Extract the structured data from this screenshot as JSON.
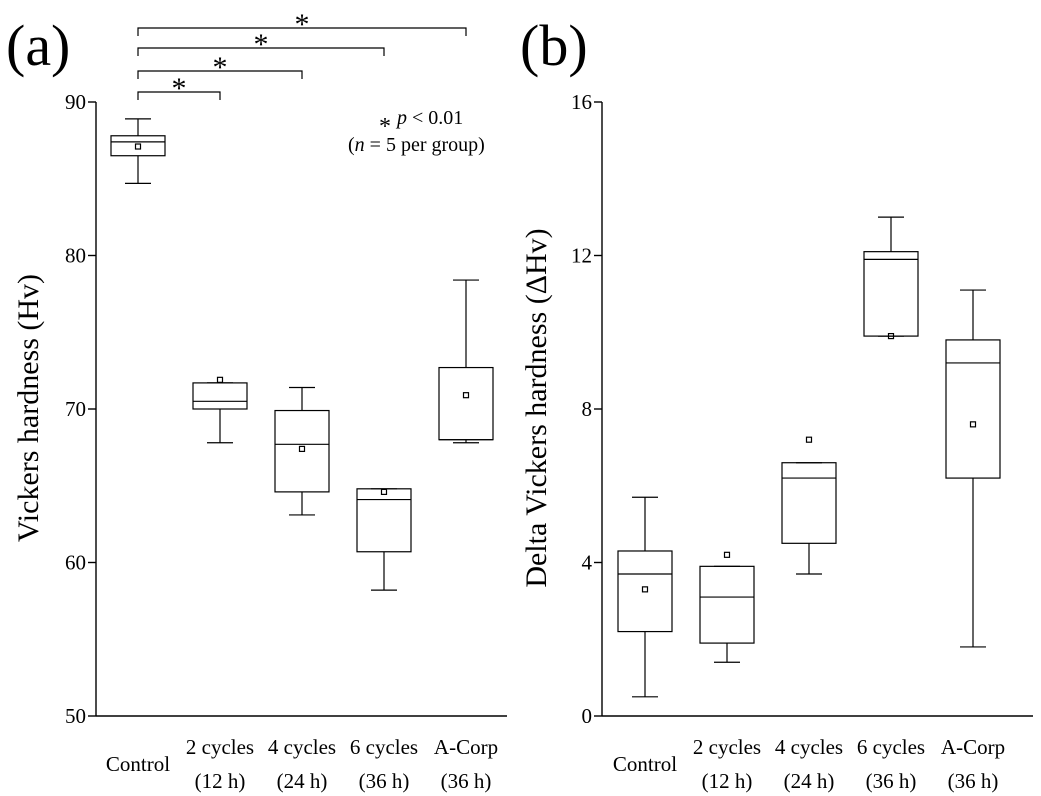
{
  "chart_data": [
    {
      "type": "box",
      "panel_label": "(a)",
      "ylabel": "Vickers hardness (Hv)",
      "ylim": [
        50,
        90
      ],
      "yticks": [
        50,
        60,
        70,
        80,
        90
      ],
      "categories": [
        {
          "line1": "Control",
          "line2": ""
        },
        {
          "line1": "2 cycles",
          "line2": "(12 h)"
        },
        {
          "line1": "4 cycles",
          "line2": "(24 h)"
        },
        {
          "line1": "6 cycles",
          "line2": "(36 h)"
        },
        {
          "line1": "A-Corp",
          "line2": "(36 h)"
        }
      ],
      "boxes": [
        {
          "min": 84.7,
          "q1": 86.5,
          "median": 87.4,
          "q3": 87.8,
          "max": 88.9,
          "mean": 87.1
        },
        {
          "min": 67.8,
          "q1": 70.0,
          "median": 70.5,
          "q3": 71.7,
          "max": 71.7,
          "mean": 71.9
        },
        {
          "min": 63.1,
          "q1": 64.6,
          "median": 67.7,
          "q3": 69.9,
          "max": 71.4,
          "mean": 67.4
        },
        {
          "min": 58.2,
          "q1": 60.7,
          "median": 64.1,
          "q3": 64.8,
          "max": 64.8,
          "mean": 64.6
        },
        {
          "min": 67.8,
          "q1": 68.0,
          "median": 68.0,
          "q3": 72.7,
          "max": 78.4,
          "mean": 70.9
        }
      ],
      "significance": [
        {
          "from": 0,
          "to": 1,
          "symbol": "*"
        },
        {
          "from": 0,
          "to": 2,
          "symbol": "*"
        },
        {
          "from": 0,
          "to": 3,
          "symbol": "*"
        },
        {
          "from": 0,
          "to": 4,
          "symbol": "*"
        }
      ],
      "annotation": {
        "star": "*",
        "p_italic": "p",
        "p_text": " < 0.01",
        "open": "(",
        "n_italic": "n",
        "n_text": " = 5 per group)"
      }
    },
    {
      "type": "box",
      "panel_label": "(b)",
      "ylabel": "Delta Vickers hardness (ΔHv)",
      "ylim": [
        0,
        16
      ],
      "yticks": [
        0,
        4,
        8,
        12,
        16
      ],
      "categories": [
        {
          "line1": "Control",
          "line2": ""
        },
        {
          "line1": "2 cycles",
          "line2": "(12 h)"
        },
        {
          "line1": "4 cycles",
          "line2": "(24 h)"
        },
        {
          "line1": "6 cycles",
          "line2": "(36 h)"
        },
        {
          "line1": "A-Corp",
          "line2": "(36 h)"
        }
      ],
      "boxes": [
        {
          "min": 0.5,
          "q1": 2.2,
          "median": 3.7,
          "q3": 4.3,
          "max": 5.7,
          "mean": 3.3
        },
        {
          "min": 1.4,
          "q1": 1.9,
          "median": 3.1,
          "q3": 3.9,
          "max": 3.9,
          "mean": 4.2
        },
        {
          "min": 3.7,
          "q1": 4.5,
          "median": 6.2,
          "q3": 6.6,
          "max": 6.6,
          "mean": 7.2
        },
        {
          "min": 9.9,
          "q1": 9.9,
          "median": 11.9,
          "q3": 12.1,
          "max": 13.0,
          "mean": 9.9
        },
        {
          "min": 1.8,
          "q1": 6.2,
          "median": 9.2,
          "q3": 9.8,
          "max": 11.1,
          "mean": 7.6
        }
      ]
    }
  ]
}
